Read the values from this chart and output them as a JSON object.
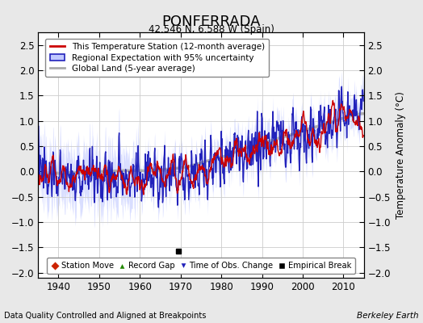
{
  "title": "PONFERRADA",
  "subtitle": "42.546 N, 6.588 W (Spain)",
  "xlabel_bottom": "Data Quality Controlled and Aligned at Breakpoints",
  "xlabel_right": "Berkeley Earth",
  "ylabel": "Temperature Anomaly (°C)",
  "ylim": [
    -2.1,
    2.75
  ],
  "xlim": [
    1935,
    2015
  ],
  "yticks": [
    -2,
    -1.5,
    -1,
    -0.5,
    0,
    0.5,
    1,
    1.5,
    2,
    2.5
  ],
  "xticks": [
    1940,
    1950,
    1960,
    1970,
    1980,
    1990,
    2000,
    2010
  ],
  "bg_color": "#e8e8e8",
  "plot_bg_color": "#ffffff",
  "grid_color": "#cccccc",
  "red_color": "#cc0000",
  "blue_color": "#2222bb",
  "fill_color": "#c0c8ff",
  "gray_color": "#aaaaaa",
  "empirical_break_year": 1969.5,
  "empirical_break_value": -1.58,
  "seed": 137
}
